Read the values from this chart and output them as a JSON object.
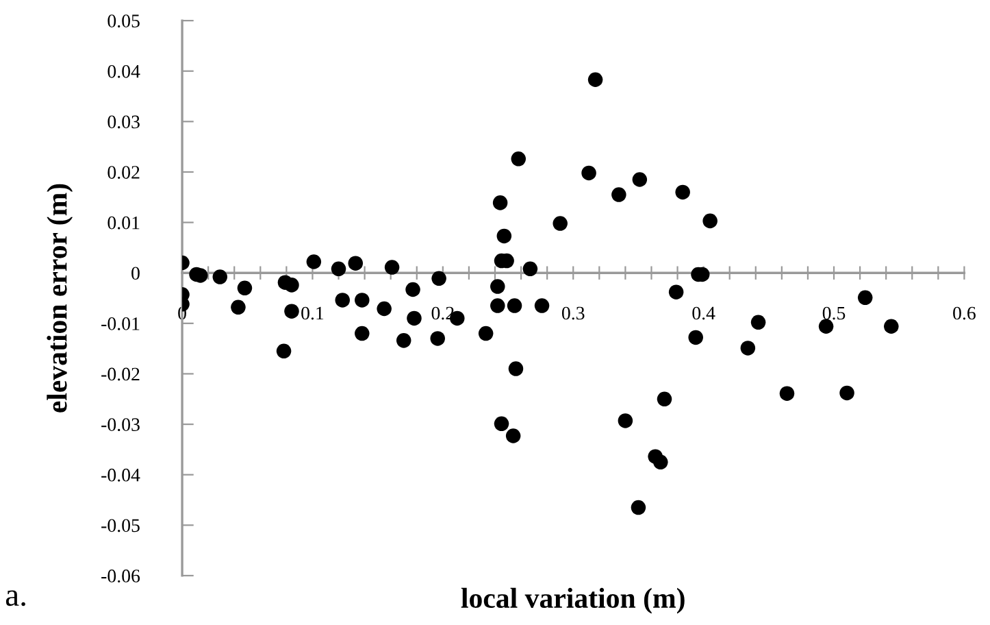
{
  "chart_data": {
    "type": "scatter",
    "xlabel": "local variation (m)",
    "ylabel": "elevation error (m)",
    "annotations": [
      "a."
    ],
    "x": [
      0,
      0,
      0,
      0.011,
      0.014,
      0.029,
      0.043,
      0.048,
      0.079,
      0.084,
      0.084,
      0.078,
      0.101,
      0.12,
      0.123,
      0.133,
      0.138,
      0.138,
      0.161,
      0.155,
      0.17,
      0.177,
      0.178,
      0.196,
      0.197,
      0.211,
      0.233,
      0.242,
      0.242,
      0.244,
      0.247,
      0.245,
      0.249,
      0.255,
      0.256,
      0.245,
      0.254,
      0.258,
      0.267,
      0.276,
      0.29,
      0.312,
      0.317,
      0.335,
      0.351,
      0.34,
      0.35,
      0.363,
      0.367,
      0.37,
      0.379,
      0.384,
      0.394,
      0.396,
      0.399,
      0.405,
      0.442,
      0.434,
      0.494,
      0.524,
      0.544,
      0.464,
      0.51
    ],
    "values": [
      0.002,
      -0.0043,
      -0.0062,
      -0.0003,
      -0.0005,
      -0.0008,
      -0.0068,
      -0.003,
      -0.0019,
      -0.0024,
      -0.0076,
      -0.0155,
      0.0022,
      0.0008,
      -0.0054,
      0.0019,
      -0.0054,
      -0.012,
      0.0011,
      -0.0071,
      -0.0134,
      -0.0033,
      -0.009,
      -0.013,
      -0.0011,
      -0.009,
      -0.012,
      -0.0027,
      -0.0065,
      0.0139,
      0.0073,
      0.0024,
      0.0024,
      -0.0065,
      -0.019,
      -0.0299,
      -0.0323,
      0.0226,
      0.0008,
      -0.0065,
      0.0098,
      0.0198,
      0.0383,
      0.0155,
      0.0185,
      -0.0293,
      -0.0465,
      -0.0364,
      -0.0375,
      -0.025,
      -0.0038,
      0.016,
      -0.0128,
      -0.0003,
      -0.0003,
      0.0103,
      -0.0098,
      -0.0149,
      -0.0106,
      -0.0049,
      -0.0106,
      -0.0239,
      -0.0238
    ],
    "color": "#000000",
    "marker": "circle",
    "xlim": [
      0,
      0.6
    ],
    "xticks": [
      0,
      {
        "value": 0.02,
        "label": null
      },
      {
        "value": 0.04,
        "label": null
      },
      {
        "value": 0.06,
        "label": null
      },
      {
        "value": 0.08,
        "label": null
      },
      0.1,
      {
        "value": 0.12,
        "label": null
      },
      {
        "value": 0.14,
        "label": null
      },
      {
        "value": 0.16,
        "label": null
      },
      {
        "value": 0.18,
        "label": null
      },
      0.2,
      {
        "value": 0.22,
        "label": null
      },
      {
        "value": 0.24,
        "label": null
      },
      {
        "value": 0.26,
        "label": null
      },
      {
        "value": 0.28,
        "label": null
      },
      0.3,
      {
        "value": 0.32,
        "label": null
      },
      {
        "value": 0.34,
        "label": null
      },
      {
        "value": 0.36,
        "label": null
      },
      {
        "value": 0.38,
        "label": null
      },
      0.4,
      {
        "value": 0.42,
        "label": null
      },
      {
        "value": 0.44,
        "label": null
      },
      {
        "value": 0.46,
        "label": null
      },
      {
        "value": 0.48,
        "label": null
      },
      0.5,
      {
        "value": 0.52,
        "label": null
      },
      {
        "value": 0.54,
        "label": null
      },
      {
        "value": 0.56,
        "label": null
      },
      {
        "value": 0.58,
        "label": null
      },
      0.6
    ],
    "ylim": [
      -0.06,
      0.05
    ],
    "yticks": [
      -0.06,
      -0.05,
      -0.04,
      -0.03,
      -0.02,
      -0.01,
      0,
      0.01,
      0.02,
      0.03,
      0.04,
      0.05
    ],
    "grid": false
  }
}
